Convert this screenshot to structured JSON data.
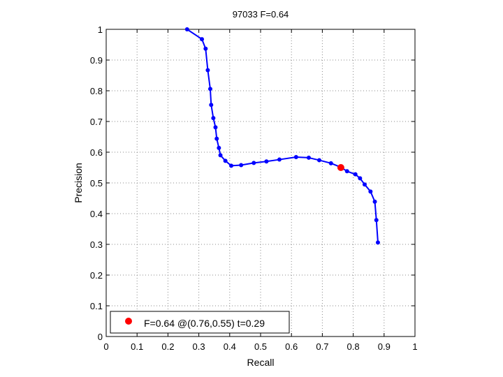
{
  "chart_data": {
    "type": "line",
    "title": "97033 F=0.64",
    "xlabel": "Recall",
    "ylabel": "Precision",
    "xlim": [
      0,
      1
    ],
    "ylim": [
      0,
      1
    ],
    "xticks": [
      "0",
      "0.1",
      "0.2",
      "0.3",
      "0.4",
      "0.5",
      "0.6",
      "0.7",
      "0.8",
      "0.9",
      "1"
    ],
    "yticks": [
      "0",
      "0.1",
      "0.2",
      "0.3",
      "0.4",
      "0.5",
      "0.6",
      "0.7",
      "0.8",
      "0.9",
      "1"
    ],
    "grid": true,
    "legend_position": "bottom-left",
    "series": [
      {
        "color": "#0000ff",
        "marker": "dot",
        "points": [
          [
            0.262,
            1.0
          ],
          [
            0.31,
            0.968
          ],
          [
            0.322,
            0.937
          ],
          [
            0.329,
            0.867
          ],
          [
            0.337,
            0.806
          ],
          [
            0.34,
            0.754
          ],
          [
            0.347,
            0.711
          ],
          [
            0.354,
            0.681
          ],
          [
            0.358,
            0.644
          ],
          [
            0.365,
            0.614
          ],
          [
            0.37,
            0.59
          ],
          [
            0.386,
            0.572
          ],
          [
            0.405,
            0.556
          ],
          [
            0.437,
            0.558
          ],
          [
            0.478,
            0.565
          ],
          [
            0.519,
            0.57
          ],
          [
            0.561,
            0.576
          ],
          [
            0.615,
            0.584
          ],
          [
            0.656,
            0.582
          ],
          [
            0.69,
            0.574
          ],
          [
            0.728,
            0.564
          ],
          [
            0.76,
            0.551
          ],
          [
            0.78,
            0.538
          ],
          [
            0.807,
            0.528
          ],
          [
            0.822,
            0.515
          ],
          [
            0.837,
            0.495
          ],
          [
            0.856,
            0.472
          ],
          [
            0.87,
            0.439
          ],
          [
            0.875,
            0.379
          ],
          [
            0.88,
            0.306
          ]
        ]
      }
    ],
    "highlight": {
      "label": "F=0.64 @(0.76,0.55) t=0.29",
      "x": 0.76,
      "y": 0.55,
      "color": "#ff0000"
    }
  }
}
